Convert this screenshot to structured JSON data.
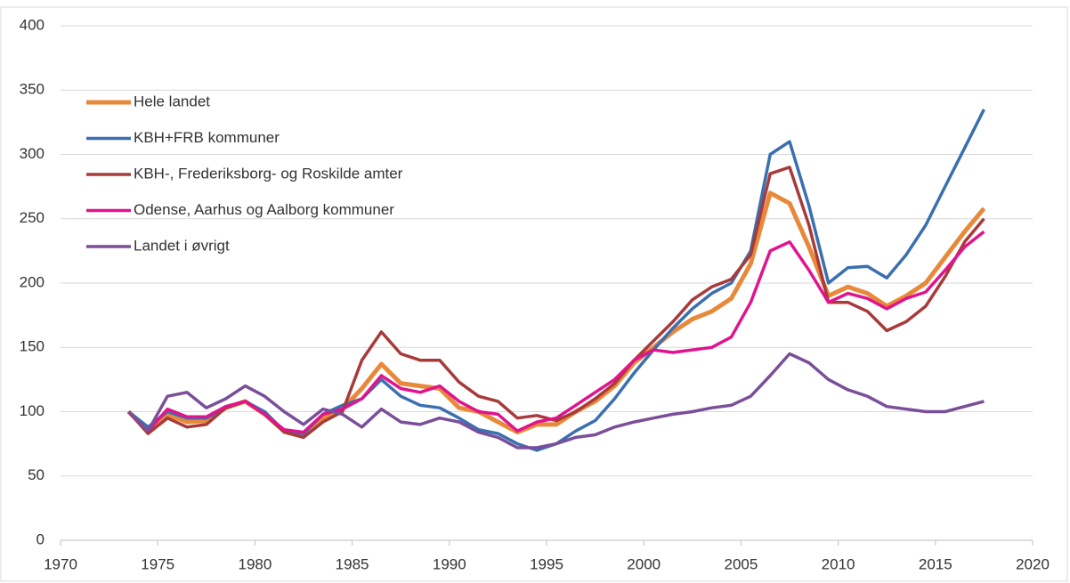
{
  "chart_data": {
    "type": "line",
    "x": [
      1973.5,
      1974.5,
      1975.5,
      1976.5,
      1977.5,
      1978.5,
      1979.5,
      1980.5,
      1981.5,
      1982.5,
      1983.5,
      1984.5,
      1985.5,
      1986.5,
      1987.5,
      1988.5,
      1989.5,
      1990.5,
      1991.5,
      1992.5,
      1993.5,
      1994.5,
      1995.5,
      1996.5,
      1997.5,
      1998.5,
      1999.5,
      2000.5,
      2001.5,
      2002.5,
      2003.5,
      2004.5,
      2005.5,
      2006.5,
      2007.5,
      2008.5,
      2009.5,
      2010.5,
      2011.5,
      2012.5,
      2013.5,
      2014.5,
      2015.5,
      2016.5,
      2017.5
    ],
    "series": [
      {
        "name": "Hele landet",
        "color": "#e8893a",
        "width": 5,
        "values": [
          100,
          85,
          98,
          92,
          93,
          103,
          108,
          98,
          85,
          82,
          95,
          102,
          118,
          137,
          122,
          120,
          118,
          103,
          100,
          92,
          84,
          90,
          90,
          100,
          108,
          120,
          138,
          150,
          162,
          172,
          178,
          188,
          215,
          270,
          262,
          228,
          190,
          197,
          192,
          182,
          190,
          200,
          220,
          240,
          258
        ]
      },
      {
        "name": "KBH+FRB kommuner",
        "color": "#3a6fb0",
        "width": 3.5,
        "values": [
          100,
          88,
          100,
          95,
          95,
          103,
          108,
          100,
          85,
          83,
          98,
          105,
          110,
          125,
          112,
          105,
          103,
          95,
          86,
          83,
          75,
          70,
          75,
          85,
          93,
          110,
          130,
          148,
          165,
          180,
          192,
          200,
          225,
          300,
          310,
          260,
          200,
          212,
          213,
          204,
          222,
          245,
          275,
          305,
          335
        ]
      },
      {
        "name": "KBH-, Frederiksborg- og Roskilde amter",
        "color": "#a83a3a",
        "width": 3.5,
        "values": [
          100,
          83,
          95,
          88,
          90,
          103,
          108,
          98,
          84,
          80,
          92,
          100,
          140,
          162,
          145,
          140,
          140,
          123,
          112,
          108,
          95,
          97,
          93,
          100,
          110,
          122,
          140,
          155,
          170,
          187,
          197,
          203,
          222,
          285,
          290,
          245,
          185,
          185,
          178,
          163,
          170,
          182,
          205,
          232,
          250
        ]
      },
      {
        "name": "Odense, Aarhus og Aalborg kommuner",
        "color": "#e0148e",
        "width": 3.5,
        "values": [
          100,
          85,
          102,
          96,
          96,
          104,
          108,
          98,
          86,
          84,
          98,
          102,
          110,
          128,
          118,
          115,
          120,
          108,
          100,
          98,
          85,
          92,
          95,
          105,
          115,
          125,
          140,
          148,
          146,
          148,
          150,
          158,
          185,
          225,
          232,
          210,
          185,
          192,
          188,
          180,
          188,
          193,
          210,
          228,
          240
        ]
      },
      {
        "name": "Landet i øvrigt",
        "color": "#7a4f9a",
        "width": 3.5,
        "values": [
          100,
          85,
          112,
          115,
          103,
          110,
          120,
          112,
          100,
          90,
          102,
          98,
          88,
          102,
          92,
          90,
          95,
          92,
          84,
          80,
          72,
          72,
          75,
          80,
          82,
          88,
          92,
          95,
          98,
          100,
          103,
          105,
          112,
          128,
          145,
          138,
          125,
          117,
          112,
          104,
          102,
          100,
          100,
          104,
          108
        ]
      }
    ],
    "xlim": [
      1970,
      2020
    ],
    "xticks": [
      1970,
      1975,
      1980,
      1985,
      1990,
      1995,
      2000,
      2005,
      2010,
      2015,
      2020
    ],
    "ylim": [
      0,
      400
    ],
    "yticks": [
      0,
      50,
      100,
      150,
      200,
      250,
      300,
      350,
      400
    ],
    "grid": true,
    "legend": "top-left"
  }
}
